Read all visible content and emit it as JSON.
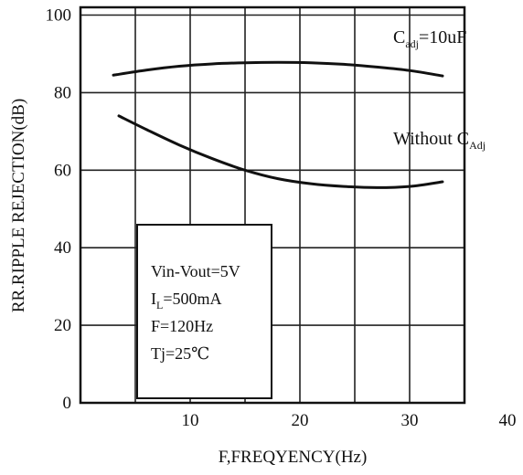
{
  "chart_data": {
    "type": "line",
    "title": "",
    "xlabel": "F,FREQYENCY(Hz)",
    "ylabel": "RR.RIPPLE REJECTION(dB)",
    "xlim": [
      0,
      35
    ],
    "ylim": [
      0,
      102
    ],
    "x_ticks": [
      {
        "value": 10,
        "label": "10"
      },
      {
        "value": 20,
        "label": "20"
      },
      {
        "value": 30,
        "label": "30"
      },
      {
        "value": 40,
        "label": "40"
      }
    ],
    "y_ticks": [
      {
        "value": 0,
        "label": "0"
      },
      {
        "value": 20,
        "label": "20"
      },
      {
        "value": 40,
        "label": "40"
      },
      {
        "value": 60,
        "label": "60"
      },
      {
        "value": 80,
        "label": "80"
      },
      {
        "value": 100,
        "label": "100"
      }
    ],
    "grid": true,
    "series": [
      {
        "name": "Cadj=10uF",
        "label_main": "C",
        "label_sub": "adj",
        "label_rest": "=10uF",
        "x": [
          3,
          6,
          9,
          12,
          15,
          18,
          21,
          24,
          27,
          30,
          33
        ],
        "y": [
          84.5,
          85.8,
          86.8,
          87.4,
          87.7,
          87.8,
          87.7,
          87.3,
          86.6,
          85.7,
          84.3
        ]
      },
      {
        "name": "Without CAdj",
        "label_main": "Without C",
        "label_sub": "Adj",
        "label_rest": "",
        "x": [
          3.5,
          6,
          9,
          12,
          15,
          18,
          21,
          24,
          27,
          30,
          33
        ],
        "y": [
          74,
          70.5,
          66.5,
          63,
          60,
          57.8,
          56.5,
          55.8,
          55.5,
          55.8,
          57
        ]
      }
    ],
    "conditions": [
      {
        "text": "Vin-Vout=5V",
        "main": "Vin-Vout=5V",
        "sub": "",
        "rest": ""
      },
      {
        "text": "IL=500mA",
        "main": "I",
        "sub": "L",
        "rest": "=500mA"
      },
      {
        "text": "F=120Hz",
        "main": "F",
        "sub": "",
        "rest": "=120Hz"
      },
      {
        "text": "Tj=25℃",
        "main": "Tj=25℃",
        "sub": "",
        "rest": ""
      }
    ]
  }
}
